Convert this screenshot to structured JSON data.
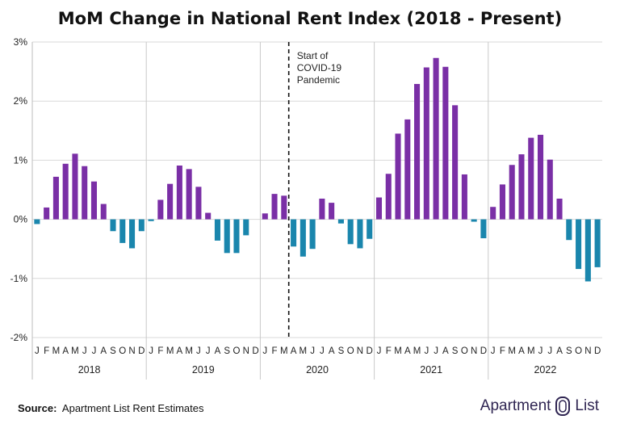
{
  "chart_data": {
    "type": "bar",
    "title": "MoM Change in National Rent Index (2018 - Present)",
    "ylim": [
      -2,
      3
    ],
    "y_ticks": [
      -2,
      -1,
      0,
      1,
      2,
      3
    ],
    "y_tick_labels": [
      "-2%",
      "-1%",
      "0%",
      "1%",
      "2%",
      "3%"
    ],
    "month_labels": [
      "J",
      "F",
      "M",
      "A",
      "M",
      "J",
      "J",
      "A",
      "S",
      "O",
      "N",
      "D"
    ],
    "years": [
      "2018",
      "2019",
      "2020",
      "2021",
      "2022"
    ],
    "values": [
      -0.08,
      0.2,
      0.72,
      0.94,
      1.11,
      0.9,
      0.64,
      0.26,
      -0.2,
      -0.4,
      -0.49,
      -0.2,
      -0.03,
      0.33,
      0.6,
      0.91,
      0.85,
      0.55,
      0.11,
      -0.36,
      -0.57,
      -0.57,
      -0.27,
      null,
      0.1,
      0.43,
      0.4,
      -0.46,
      -0.63,
      -0.5,
      0.35,
      0.28,
      -0.07,
      -0.42,
      -0.49,
      -0.33,
      0.37,
      0.77,
      1.45,
      1.69,
      2.29,
      2.57,
      2.73,
      2.58,
      1.93,
      0.76,
      -0.04,
      -0.32,
      0.21,
      0.59,
      0.92,
      1.1,
      1.38,
      1.43,
      1.01,
      0.35,
      -0.35,
      -0.84,
      -1.05,
      -0.81
    ],
    "colors": {
      "positive": "#7a2fa6",
      "negative": "#1a86ad"
    },
    "annotation": {
      "lines": [
        "Start of",
        "COVID-19",
        "Pandemic"
      ],
      "position_month": "2020-Mar"
    },
    "grid": true
  },
  "footer": {
    "source_label": "Source:",
    "source_text": "Apartment List Rent Estimates",
    "brand_left": "Apartment",
    "brand_right": "List"
  }
}
